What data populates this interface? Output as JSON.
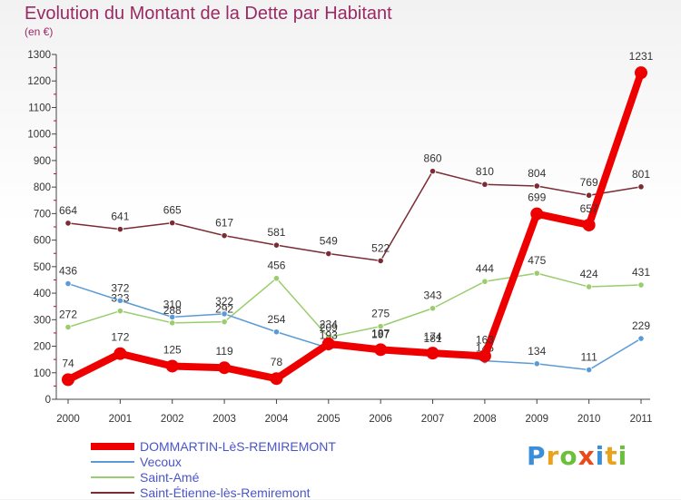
{
  "title": "Evolution du Montant de la Dette par Habitant",
  "subtitle": "(en €)",
  "logo_text": "Proxiti",
  "chart_data": {
    "type": "line",
    "title": "Evolution du Montant de la Dette par Habitant",
    "subtitle": "(en €)",
    "xlabel": "",
    "ylabel": "",
    "ylim": [
      0,
      1300
    ],
    "grid": false,
    "legend_position": "bottom",
    "y_ticks": [
      0,
      100,
      200,
      300,
      400,
      500,
      600,
      700,
      800,
      900,
      1000,
      1100,
      1200,
      1300
    ],
    "x": [
      "2000",
      "2001",
      "2002",
      "2003",
      "2004",
      "2005",
      "2006",
      "2007",
      "2008",
      "2009",
      "2010",
      "2011"
    ],
    "series": [
      {
        "name": "Saint-Étienne-lès-Remiremont",
        "color": "#7a2b33",
        "values": [
          664,
          641,
          665,
          617,
          581,
          549,
          522,
          860,
          810,
          804,
          769,
          801
        ],
        "labels": [
          "664",
          "641",
          "665",
          "617",
          "581",
          "549",
          "522",
          "860",
          "810",
          "804",
          "769",
          "801"
        ]
      },
      {
        "name": "Saint-Amé",
        "color": "#9acd6e",
        "values": [
          272,
          333,
          288,
          292,
          456,
          234,
          275,
          343,
          444,
          475,
          424,
          431
        ],
        "labels": [
          "272",
          "333",
          "288",
          "292",
          "456",
          "234",
          "275",
          "343",
          "444",
          "475",
          "424",
          "431"
        ]
      },
      {
        "name": "Vecoux",
        "color": "#5b9bd5",
        "values": [
          436,
          372,
          310,
          322,
          254,
          193,
          197,
          181,
          145,
          134,
          111,
          229
        ],
        "labels": [
          "436",
          "372",
          "310",
          "322",
          "254",
          "193",
          "197",
          "181",
          "145",
          "134",
          "111",
          "229"
        ]
      },
      {
        "name": "DOMMARTIN-LèS-REMIREMONT",
        "color": "#ee0000",
        "values": [
          74,
          172,
          125,
          119,
          78,
          209,
          187,
          174,
          163,
          699,
          657,
          1231
        ],
        "labels": [
          "74",
          "172",
          "125",
          "119",
          "78",
          "209",
          "187",
          "174",
          "163",
          "699",
          "657",
          "1231"
        ]
      }
    ]
  },
  "legend": [
    {
      "label": "DOMMARTIN-LèS-REMIREMONT",
      "color": "#ee0000"
    },
    {
      "label": "Vecoux",
      "color": "#5b9bd5"
    },
    {
      "label": "Saint-Amé",
      "color": "#9acd6e"
    },
    {
      "label": "Saint-Étienne-lès-Remiremont",
      "color": "#7a2b33"
    }
  ]
}
